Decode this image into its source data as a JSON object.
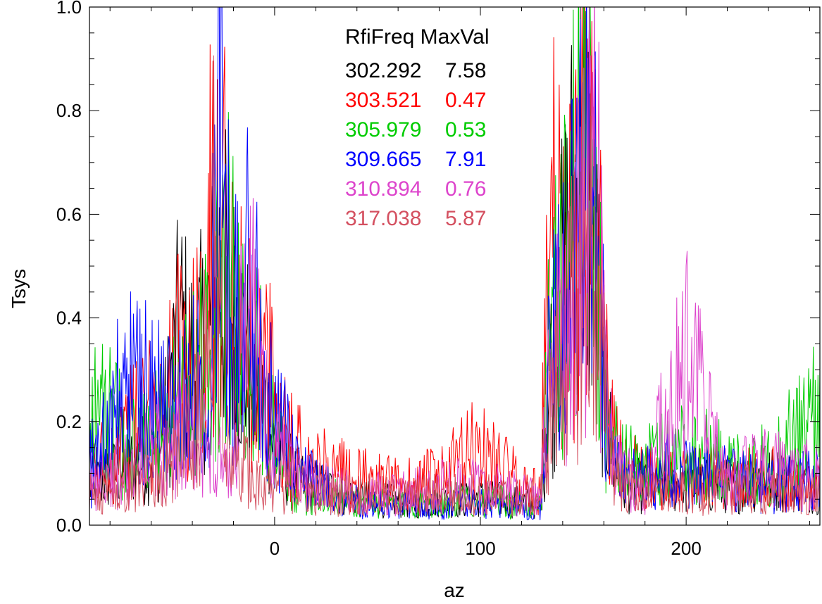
{
  "chart_data": {
    "type": "line",
    "title": "",
    "xlabel": "az",
    "ylabel": "Tsys",
    "xlim": [
      -90,
      265
    ],
    "ylim": [
      0.0,
      1.0
    ],
    "x_ticks": [
      0,
      100,
      200
    ],
    "x_tick_labels": [
      "0",
      "100",
      "200"
    ],
    "y_ticks": [
      0.0,
      0.2,
      0.4,
      0.6,
      0.8,
      1.0
    ],
    "y_tick_labels": [
      "0.0",
      "0.2",
      "0.4",
      "0.6",
      "0.8",
      "1.0"
    ],
    "grid": false,
    "legend": {
      "placement": "top-center",
      "header": "RfiFreq MaxVal",
      "entries": [
        {
          "freq": "302.292",
          "maxval": "7.58",
          "color": "#000000"
        },
        {
          "freq": "303.521",
          "maxval": "0.47",
          "color": "#ff0000"
        },
        {
          "freq": "305.979",
          "maxval": "0.53",
          "color": "#00cc00"
        },
        {
          "freq": "309.665",
          "maxval": "7.91",
          "color": "#0000ff"
        },
        {
          "freq": "310.894",
          "maxval": "0.76",
          "color": "#dd44cc"
        },
        {
          "freq": "317.038",
          "maxval": "5.87",
          "color": "#d45060"
        }
      ]
    },
    "series": [
      {
        "color": "#000000",
        "x": [
          -90,
          -70,
          -55,
          -46,
          -40,
          -35,
          -30,
          -26,
          -22,
          -18,
          -15,
          -10,
          -5,
          0,
          10,
          20,
          40,
          60,
          80,
          100,
          120,
          129,
          133,
          137,
          140,
          143,
          146,
          149,
          152,
          155,
          158,
          161,
          165,
          170,
          180,
          200,
          220,
          240,
          265
        ],
        "y": [
          0.1,
          0.15,
          0.2,
          0.5,
          0.4,
          0.45,
          0.55,
          0.67,
          0.55,
          0.5,
          0.45,
          0.35,
          0.3,
          0.2,
          0.12,
          0.1,
          0.07,
          0.06,
          0.06,
          0.07,
          0.06,
          0.05,
          0.35,
          0.5,
          0.6,
          0.75,
          0.8,
          0.9,
          0.85,
          0.75,
          0.5,
          0.3,
          0.15,
          0.1,
          0.1,
          0.1,
          0.1,
          0.12,
          0.1
        ]
      },
      {
        "color": "#ff0000",
        "x": [
          -90,
          -70,
          -55,
          -46,
          -40,
          -35,
          -30,
          -27,
          -22,
          -18,
          -15,
          -10,
          -5,
          0,
          10,
          20,
          40,
          60,
          80,
          100,
          120,
          129,
          133,
          137,
          140,
          143,
          146,
          149,
          152,
          155,
          158,
          161,
          165,
          170,
          180,
          200,
          220,
          240,
          265
        ],
        "y": [
          0.12,
          0.25,
          0.3,
          0.42,
          0.4,
          0.5,
          0.8,
          0.9,
          0.6,
          0.45,
          0.5,
          0.4,
          0.45,
          0.3,
          0.2,
          0.15,
          0.12,
          0.1,
          0.12,
          0.2,
          0.1,
          0.08,
          0.6,
          0.82,
          0.6,
          0.78,
          0.7,
          0.8,
          0.9,
          0.75,
          0.6,
          0.35,
          0.2,
          0.15,
          0.12,
          0.12,
          0.12,
          0.12,
          0.1
        ]
      },
      {
        "color": "#00cc00",
        "x": [
          -90,
          -70,
          -55,
          -46,
          -40,
          -35,
          -30,
          -27,
          -22,
          -18,
          -15,
          -10,
          -5,
          0,
          10,
          20,
          40,
          60,
          80,
          100,
          120,
          129,
          133,
          137,
          140,
          143,
          146,
          149,
          152,
          155,
          158,
          161,
          165,
          170,
          180,
          200,
          220,
          240,
          265
        ],
        "y": [
          0.33,
          0.2,
          0.25,
          0.3,
          0.35,
          0.4,
          0.6,
          0.55,
          0.62,
          0.5,
          0.45,
          0.4,
          0.35,
          0.2,
          0.1,
          0.08,
          0.06,
          0.05,
          0.06,
          0.07,
          0.05,
          0.05,
          0.4,
          0.55,
          0.6,
          0.7,
          0.8,
          1.0,
          0.9,
          0.8,
          0.6,
          0.3,
          0.2,
          0.15,
          0.15,
          0.2,
          0.15,
          0.15,
          0.3
        ]
      },
      {
        "color": "#0000ff",
        "x": [
          -90,
          -70,
          -55,
          -46,
          -40,
          -35,
          -30,
          -27,
          -22,
          -18,
          -15,
          -10,
          -5,
          0,
          10,
          20,
          40,
          60,
          80,
          100,
          120,
          129,
          133,
          137,
          140,
          143,
          146,
          149,
          152,
          155,
          158,
          161,
          165,
          170,
          180,
          200,
          220,
          240,
          265
        ],
        "y": [
          0.15,
          0.38,
          0.3,
          0.3,
          0.35,
          0.4,
          0.6,
          1.0,
          0.6,
          0.5,
          0.62,
          0.55,
          0.4,
          0.3,
          0.15,
          0.1,
          0.06,
          0.05,
          0.05,
          0.06,
          0.05,
          0.04,
          0.35,
          0.5,
          0.55,
          0.7,
          0.75,
          0.8,
          0.9,
          0.96,
          0.6,
          0.3,
          0.15,
          0.12,
          0.12,
          0.15,
          0.12,
          0.1,
          0.12
        ]
      },
      {
        "color": "#dd44cc",
        "x": [
          -90,
          -70,
          -55,
          -46,
          -40,
          -35,
          -30,
          -27,
          -22,
          -18,
          -15,
          -10,
          -5,
          0,
          10,
          20,
          40,
          60,
          80,
          100,
          120,
          129,
          133,
          137,
          140,
          143,
          146,
          149,
          152,
          155,
          158,
          161,
          165,
          170,
          180,
          200,
          220,
          240,
          265
        ],
        "y": [
          0.1,
          0.15,
          0.2,
          0.25,
          0.2,
          0.2,
          0.3,
          0.15,
          0.12,
          0.25,
          0.55,
          0.5,
          0.3,
          0.2,
          0.12,
          0.1,
          0.08,
          0.08,
          0.1,
          0.1,
          0.08,
          0.08,
          0.3,
          0.45,
          0.5,
          0.55,
          0.62,
          0.7,
          0.8,
          0.9,
          0.7,
          0.4,
          0.15,
          0.12,
          0.1,
          0.44,
          0.12,
          0.15,
          0.12
        ]
      },
      {
        "color": "#d45060",
        "x": [
          -90,
          -70,
          -55,
          -46,
          -40,
          -35,
          -30,
          -27,
          -22,
          -18,
          -15,
          -10,
          -5,
          0,
          10,
          20,
          40,
          60,
          80,
          100,
          120,
          129,
          133,
          137,
          140,
          143,
          146,
          149,
          152,
          155,
          158,
          161,
          165,
          170,
          180,
          200,
          220,
          240,
          265
        ],
        "y": [
          0.08,
          0.1,
          0.15,
          0.2,
          0.25,
          0.3,
          0.85,
          0.6,
          0.2,
          0.15,
          0.15,
          0.12,
          0.12,
          0.1,
          0.1,
          0.08,
          0.08,
          0.07,
          0.08,
          0.08,
          0.07,
          0.07,
          0.25,
          0.35,
          0.45,
          0.5,
          0.55,
          0.6,
          0.72,
          0.6,
          0.5,
          0.3,
          0.15,
          0.1,
          0.08,
          0.08,
          0.1,
          0.08,
          0.08
        ]
      }
    ]
  }
}
